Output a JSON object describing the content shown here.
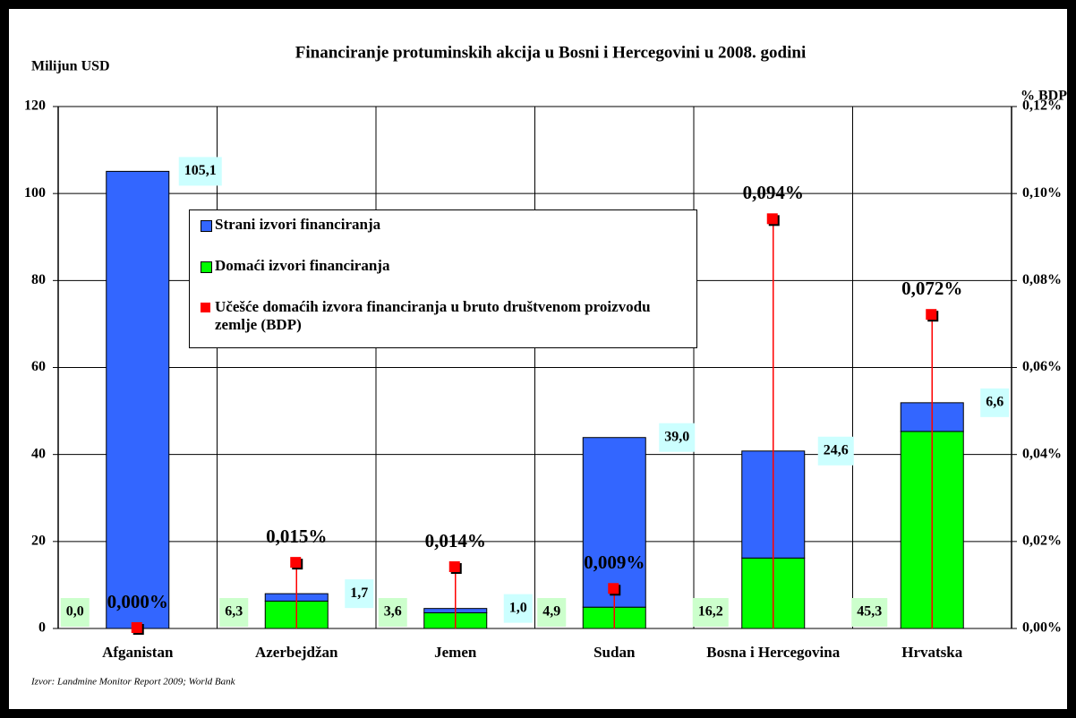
{
  "chart_data": {
    "type": "bar",
    "stacked": true,
    "title": "Financiranje protuminskih akcija u Bosni i Hercegovini u 2008. godini",
    "y_label": "Milijun USD",
    "y2_label": "% BDP",
    "source": "Izvor: Landmine Monitor Report  2009; World Bank",
    "categories": [
      "Afganistan",
      "Azerbejdžan",
      "Jemen",
      "Sudan",
      "Bosna i Hercegovina",
      "Hrvatska"
    ],
    "series": [
      {
        "name": "Domaći izvori financiranja",
        "color": "#00ff00",
        "values": [
          0.0,
          6.3,
          3.6,
          4.9,
          16.2,
          45.3
        ],
        "value_labels": [
          "0,0",
          "6,3",
          "3,6",
          "4,9",
          "16,2",
          "45,3"
        ]
      },
      {
        "name": "Strani izvori financiranja",
        "color": "#3366ff",
        "values": [
          105.1,
          1.7,
          1.0,
          39.0,
          24.6,
          6.6
        ],
        "value_labels": [
          "105,1",
          "1,7",
          "1,0",
          "39,0",
          "24,6",
          "6,6"
        ]
      },
      {
        "name": "Učešće domaćih izvora financiranja u bruto društvenom proizvodu zemlje (BDP)",
        "type": "scatter",
        "axis": "y2",
        "color": "#ff0000",
        "values": [
          0.0,
          0.015,
          0.014,
          0.009,
          0.094,
          0.072
        ],
        "value_labels": [
          "0,000%",
          "0,015%",
          "0,014%",
          "0,009%",
          "0,094%",
          "0,072%"
        ]
      }
    ],
    "ylim": [
      0,
      120
    ],
    "yticks": [
      0,
      20,
      40,
      60,
      80,
      100,
      120
    ],
    "y2lim": [
      0,
      0.12
    ],
    "y2ticks": [
      {
        "value": 0,
        "label": "0,00%"
      },
      {
        "value": 0.02,
        "label": "0,02%"
      },
      {
        "value": 0.04,
        "label": "0,04%"
      },
      {
        "value": 0.06,
        "label": "0,06%"
      },
      {
        "value": 0.08,
        "label": "0,08%"
      },
      {
        "value": 0.1,
        "label": "0,10%"
      },
      {
        "value": 0.12,
        "label": "0,12%"
      }
    ],
    "grid": true
  }
}
